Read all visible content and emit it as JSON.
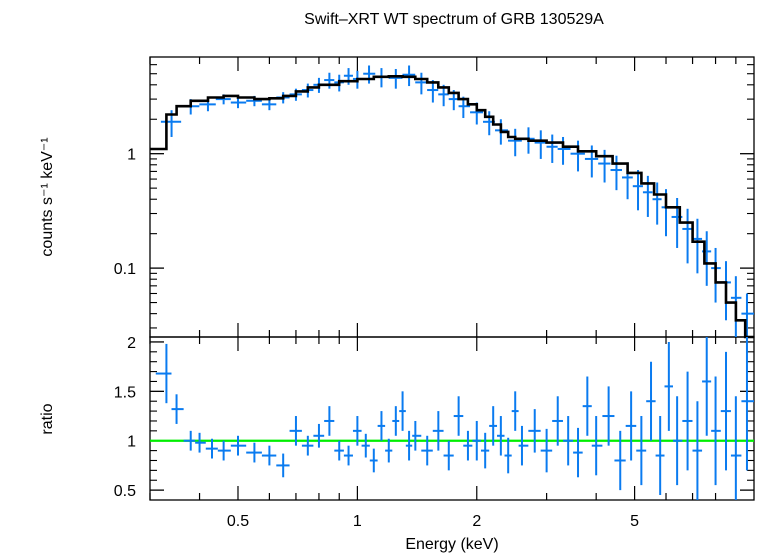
{
  "title": "Swift–XRT WT spectrum of GRB 130529A",
  "colors": {
    "data": "#0a7bf0",
    "model": "#000000",
    "unity": "#00ee00",
    "axes": "#000000"
  },
  "chart_data": [
    {
      "type": "line",
      "panel": "spectrum",
      "title": "Swift–XRT WT spectrum of GRB 130529A",
      "xlabel": "",
      "ylabel": "counts s⁻¹ keV⁻¹",
      "xscale": "log",
      "yscale": "log",
      "xlim": [
        0.3,
        10.0
      ],
      "ylim": [
        0.025,
        7.0
      ],
      "yticks": [
        {
          "v": 0.1,
          "label": "0.1"
        },
        {
          "v": 1,
          "label": "1"
        }
      ],
      "grid": false,
      "series": [
        {
          "kind": "data-points",
          "x": [
            0.34,
            0.38,
            0.42,
            0.46,
            0.5,
            0.55,
            0.6,
            0.65,
            0.7,
            0.75,
            0.8,
            0.85,
            0.9,
            0.95,
            1.0,
            1.07,
            1.15,
            1.25,
            1.35,
            1.45,
            1.55,
            1.65,
            1.75,
            1.85,
            2.0,
            2.15,
            2.3,
            2.5,
            2.7,
            2.9,
            3.1,
            3.3,
            3.6,
            3.9,
            4.2,
            4.5,
            4.8,
            5.1,
            5.4,
            5.7,
            6.0,
            6.4,
            6.8,
            7.2,
            7.6,
            8.0,
            8.5,
            9.0,
            9.6
          ],
          "y": [
            1.9,
            2.6,
            2.7,
            3.0,
            2.8,
            2.9,
            2.7,
            3.1,
            3.3,
            3.6,
            4.0,
            4.4,
            4.2,
            4.8,
            4.5,
            5.0,
            4.7,
            4.6,
            4.9,
            4.2,
            3.6,
            3.3,
            3.0,
            2.6,
            2.3,
            1.9,
            1.6,
            1.3,
            1.35,
            1.25,
            1.15,
            1.1,
            1.0,
            0.9,
            0.82,
            0.72,
            0.62,
            0.52,
            0.46,
            0.4,
            0.34,
            0.28,
            0.22,
            0.18,
            0.14,
            0.1,
            0.075,
            0.055,
            0.04
          ],
          "yerr": [
            0.5,
            0.4,
            0.35,
            0.3,
            0.3,
            0.3,
            0.3,
            0.35,
            0.4,
            0.5,
            0.6,
            0.7,
            0.7,
            0.8,
            0.8,
            0.9,
            0.9,
            0.9,
            1.0,
            0.9,
            0.8,
            0.7,
            0.6,
            0.55,
            0.5,
            0.45,
            0.4,
            0.35,
            0.35,
            0.35,
            0.32,
            0.3,
            0.3,
            0.28,
            0.26,
            0.24,
            0.22,
            0.2,
            0.18,
            0.16,
            0.15,
            0.13,
            0.11,
            0.09,
            0.07,
            0.05,
            0.04,
            0.03,
            0.02
          ]
        },
        {
          "kind": "model-step",
          "x": [
            0.3,
            0.33,
            0.35,
            0.38,
            0.42,
            0.46,
            0.5,
            0.55,
            0.6,
            0.65,
            0.7,
            0.75,
            0.8,
            0.9,
            1.0,
            1.1,
            1.2,
            1.3,
            1.4,
            1.5,
            1.6,
            1.7,
            1.8,
            1.9,
            2.0,
            2.1,
            2.2,
            2.3,
            2.4,
            2.5,
            2.7,
            3.0,
            3.3,
            3.6,
            4.0,
            4.4,
            4.8,
            5.2,
            5.6,
            6.0,
            6.5,
            7.0,
            7.5,
            8.0,
            8.5,
            9.0,
            9.5,
            10.0
          ],
          "y": [
            1.1,
            2.2,
            2.6,
            2.9,
            3.1,
            3.2,
            3.1,
            3.0,
            3.05,
            3.2,
            3.5,
            3.8,
            4.0,
            4.3,
            4.5,
            4.7,
            4.75,
            4.7,
            4.5,
            4.2,
            3.8,
            3.4,
            3.0,
            2.7,
            2.4,
            2.1,
            1.8,
            1.55,
            1.4,
            1.35,
            1.3,
            1.25,
            1.15,
            1.05,
            0.95,
            0.82,
            0.68,
            0.55,
            0.44,
            0.34,
            0.25,
            0.17,
            0.11,
            0.075,
            0.05,
            0.035,
            0.025,
            0.025
          ]
        }
      ]
    },
    {
      "type": "scatter",
      "panel": "ratio",
      "xlabel": "Energy (keV)",
      "ylabel": "ratio",
      "xscale": "log",
      "xlim": [
        0.3,
        10.0
      ],
      "ylim": [
        0.4,
        2.05
      ],
      "xticks": [
        {
          "v": 0.5,
          "label": "0.5"
        },
        {
          "v": 1,
          "label": "1"
        },
        {
          "v": 2,
          "label": "2"
        },
        {
          "v": 5,
          "label": "5"
        }
      ],
      "yticks": [
        {
          "v": 0.5,
          "label": "0.5"
        },
        {
          "v": 1,
          "label": "1"
        },
        {
          "v": 1.5,
          "label": "1.5"
        },
        {
          "v": 2,
          "label": "2"
        }
      ],
      "reference_line": 1.0,
      "grid": false,
      "x": [
        0.33,
        0.35,
        0.38,
        0.4,
        0.43,
        0.46,
        0.5,
        0.55,
        0.6,
        0.65,
        0.7,
        0.75,
        0.8,
        0.85,
        0.9,
        0.95,
        1.0,
        1.05,
        1.1,
        1.15,
        1.2,
        1.25,
        1.3,
        1.35,
        1.4,
        1.5,
        1.6,
        1.7,
        1.8,
        1.9,
        2.0,
        2.1,
        2.2,
        2.3,
        2.4,
        2.5,
        2.6,
        2.8,
        3.0,
        3.2,
        3.4,
        3.6,
        3.8,
        4.0,
        4.3,
        4.6,
        4.9,
        5.2,
        5.5,
        5.8,
        6.1,
        6.4,
        6.8,
        7.2,
        7.6,
        8.0,
        8.5,
        9.0,
        9.6
      ],
      "y": [
        1.68,
        1.32,
        1.0,
        0.98,
        0.92,
        0.9,
        0.95,
        0.88,
        0.85,
        0.75,
        1.1,
        0.95,
        1.05,
        1.2,
        0.9,
        0.85,
        1.1,
        0.95,
        0.8,
        1.15,
        0.9,
        1.2,
        1.3,
        0.95,
        1.05,
        0.9,
        1.1,
        0.85,
        1.25,
        0.95,
        1.0,
        0.9,
        1.15,
        1.05,
        0.85,
        1.3,
        0.95,
        1.1,
        0.9,
        1.2,
        1.0,
        0.88,
        1.35,
        0.95,
        1.25,
        0.8,
        1.15,
        0.9,
        1.4,
        0.85,
        1.55,
        1.0,
        1.2,
        0.9,
        1.6,
        1.1,
        1.3,
        0.85,
        1.4
      ],
      "yerr": [
        0.3,
        0.15,
        0.1,
        0.1,
        0.1,
        0.1,
        0.1,
        0.1,
        0.1,
        0.12,
        0.15,
        0.1,
        0.12,
        0.15,
        0.1,
        0.1,
        0.15,
        0.12,
        0.12,
        0.15,
        0.12,
        0.15,
        0.2,
        0.15,
        0.15,
        0.15,
        0.2,
        0.15,
        0.2,
        0.15,
        0.2,
        0.18,
        0.2,
        0.2,
        0.18,
        0.2,
        0.2,
        0.22,
        0.22,
        0.25,
        0.25,
        0.25,
        0.3,
        0.3,
        0.3,
        0.3,
        0.35,
        0.35,
        0.4,
        0.4,
        0.45,
        0.45,
        0.5,
        0.5,
        0.55,
        0.55,
        0.6,
        0.6,
        0.7
      ]
    }
  ]
}
